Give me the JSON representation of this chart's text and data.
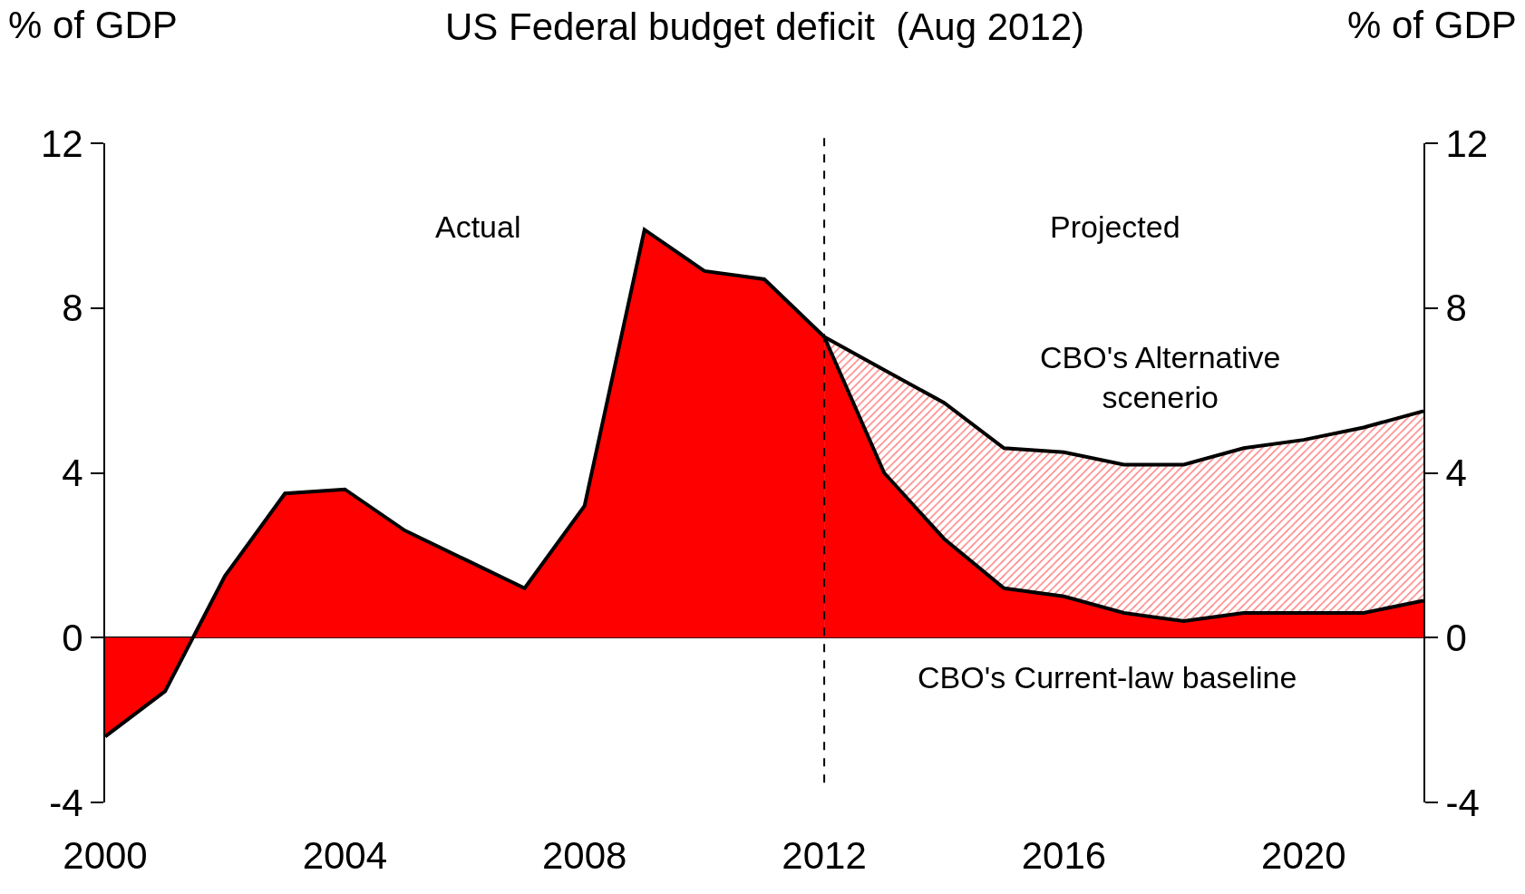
{
  "chart_data": {
    "type": "area",
    "title": "US Federal budget deficit  (Aug 2012)",
    "ylabel": "% of GDP",
    "y2label": "% of GDP",
    "series": [
      {
        "color": "#ff0000",
        "x": [
          2000,
          2001,
          2002,
          2003,
          2004,
          2005,
          2006,
          2007,
          2008,
          2009,
          2010,
          2011,
          2012
        ],
        "values": [
          -2.4,
          -1.3,
          1.5,
          3.5,
          3.6,
          2.6,
          1.9,
          1.2,
          3.2,
          9.9,
          8.9,
          8.7,
          7.3
        ]
      },
      {
        "color": "#ff0000",
        "x": [
          2012,
          2013,
          2014,
          2015,
          2016,
          2017,
          2018,
          2019,
          2020,
          2021,
          2022
        ],
        "values": [
          7.3,
          4.0,
          2.4,
          1.2,
          1.0,
          0.6,
          0.4,
          0.6,
          0.6,
          0.6,
          0.9
        ]
      },
      {
        "color": "#ff0000",
        "x": [
          2012,
          2013,
          2014,
          2015,
          2016,
          2017,
          2018,
          2019,
          2020,
          2021,
          2022
        ],
        "values": [
          7.3,
          6.5,
          5.7,
          4.6,
          4.5,
          4.2,
          4.2,
          4.6,
          4.8,
          5.1,
          5.5
        ]
      }
    ],
    "xlim": [
      2000,
      2022
    ],
    "xticks": [
      2000,
      2004,
      2008,
      2012,
      2016,
      2020
    ],
    "ylim": [
      -4,
      12
    ],
    "yticks": [
      -4,
      0,
      4,
      8,
      12
    ],
    "y2lim": [
      -4,
      12
    ],
    "y2ticks": [
      -4,
      0,
      4,
      8,
      12
    ],
    "ref_lines": [
      {
        "axis": "x",
        "value": 2012,
        "line_style": "dashed",
        "color": "#000000"
      }
    ],
    "annotations": [
      "Actual",
      "Projected",
      "CBO's Alternative\nscenerio",
      "CBO's Current-law baseline"
    ]
  }
}
